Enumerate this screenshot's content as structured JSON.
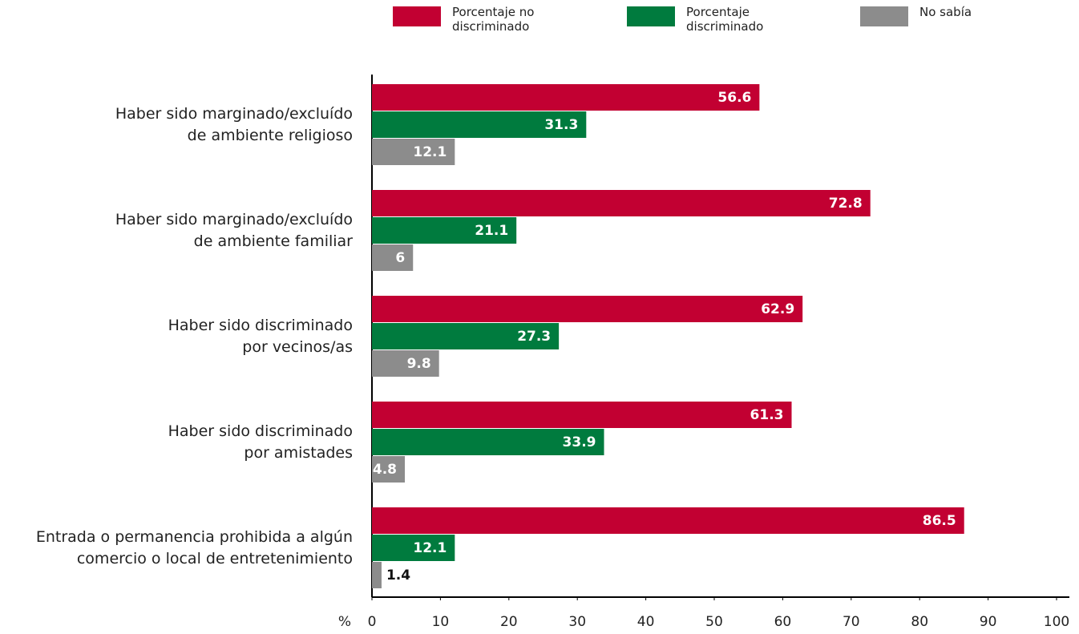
{
  "chart_data": {
    "type": "bar",
    "orientation": "horizontal",
    "x_label": "%",
    "categories": [
      [
        "Haber sido marginado/excluído",
        "de ambiente religioso"
      ],
      [
        "Haber sido marginado/excluído",
        "de ambiente familiar"
      ],
      [
        "Haber sido discriminado",
        "por vecinos/as"
      ],
      [
        "Haber sido discriminado",
        "por amistades"
      ],
      [
        "Entrada o permanencia prohibida a algún",
        "comercio o local de entretenimiento"
      ]
    ],
    "series": [
      {
        "name": "Porcentaje no discriminado",
        "color": "#c20032",
        "values": [
          56.6,
          72.8,
          62.9,
          61.3,
          86.5
        ]
      },
      {
        "name": "Porcentaje discriminado",
        "color": "#007b3e",
        "values": [
          31.3,
          21.1,
          27.3,
          33.9,
          12.1
        ]
      },
      {
        "name": "No sabía",
        "color": "#8c8c8c",
        "values": [
          12.1,
          6,
          9.8,
          4.8,
          1.4
        ]
      }
    ],
    "xlim": [
      0,
      100
    ],
    "xticks": [
      0,
      10,
      20,
      30,
      40,
      50,
      60,
      70,
      80,
      90,
      100
    ],
    "legend": "top"
  }
}
